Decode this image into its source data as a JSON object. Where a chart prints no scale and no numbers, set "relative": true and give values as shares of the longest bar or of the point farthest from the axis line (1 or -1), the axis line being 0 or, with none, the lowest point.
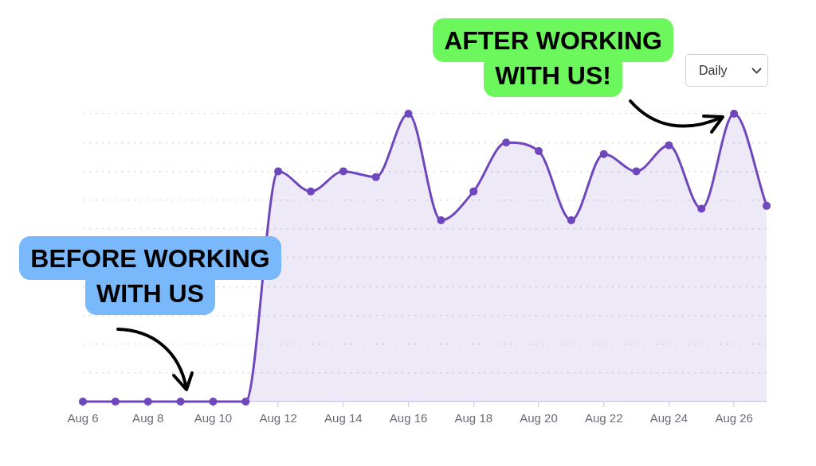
{
  "chart_data": {
    "type": "area",
    "categories": [
      "Aug 6",
      null,
      "Aug 8",
      null,
      "Aug 10",
      null,
      "Aug 12",
      null,
      "Aug 14",
      null,
      "Aug 16",
      null,
      "Aug 18",
      null,
      "Aug 20",
      null,
      "Aug 22",
      null,
      "Aug 24",
      null,
      "Aug 26",
      null
    ],
    "series": [
      {
        "color": "#6f47bd",
        "values": [
          0,
          0,
          0,
          0,
          0,
          0,
          0.8,
          0.73,
          0.8,
          0.78,
          1,
          0.63,
          0.73,
          0.9,
          0.87,
          0.63,
          0.86,
          0.8,
          0.89,
          0.67,
          1,
          0.68
        ]
      }
    ],
    "relative": true,
    "grid": "y",
    "marker": "circle",
    "line_style": "solid",
    "annotations": [
      "BEFORE WORKING WITH US",
      "AFTER WORKING WITH US!",
      "Daily"
    ]
  }
}
